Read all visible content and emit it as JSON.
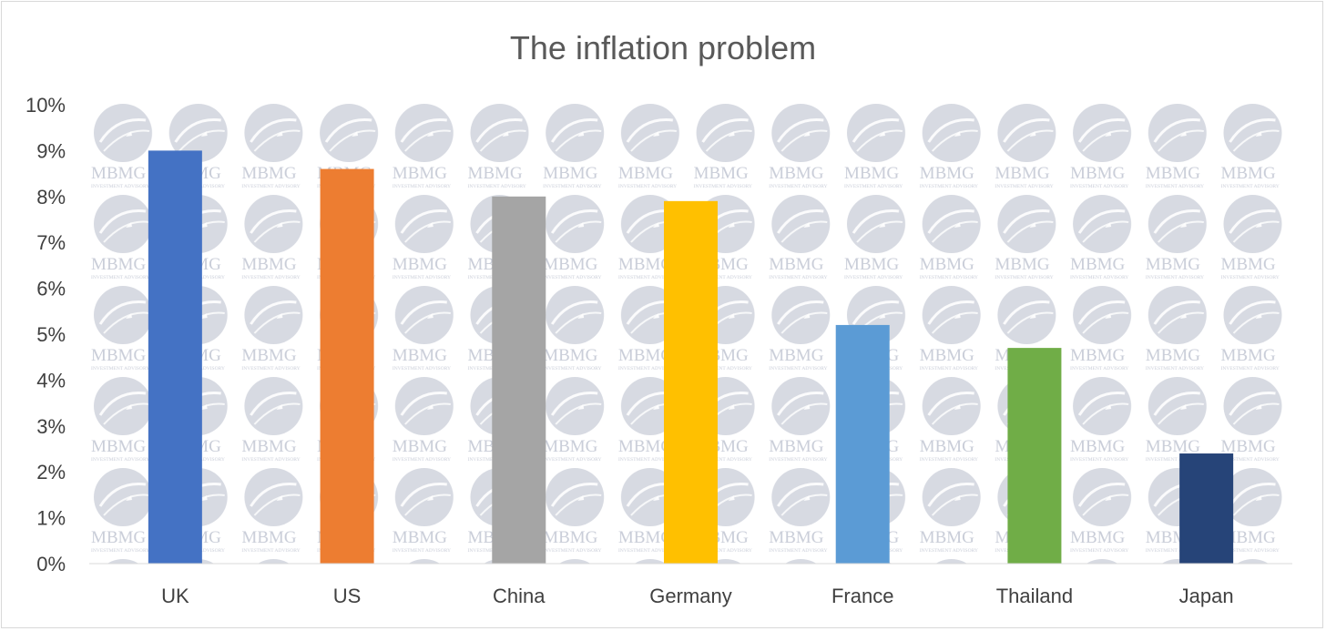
{
  "chart_data": {
    "type": "bar",
    "title": "The inflation problem",
    "xlabel": "",
    "ylabel": "",
    "categories": [
      "UK",
      "US",
      "China",
      "Germany",
      "France",
      "Thailand",
      "Japan"
    ],
    "values": [
      9.0,
      8.6,
      8.0,
      7.9,
      5.2,
      4.7,
      2.4
    ],
    "colors": [
      "#4472c4",
      "#ed7d31",
      "#a5a5a5",
      "#ffc000",
      "#5b9bd5",
      "#70ad47",
      "#264478"
    ],
    "ylim": [
      0,
      10
    ],
    "yticks": [
      "0%",
      "1%",
      "2%",
      "3%",
      "4%",
      "5%",
      "6%",
      "7%",
      "8%",
      "9%",
      "10%"
    ],
    "grid": false,
    "legend": "none",
    "watermark": {
      "text": "MBMG",
      "subtext": "INVESTMENT ADVISORY",
      "icon": "globe-logo-icon",
      "color": "#c9cdd8"
    }
  }
}
